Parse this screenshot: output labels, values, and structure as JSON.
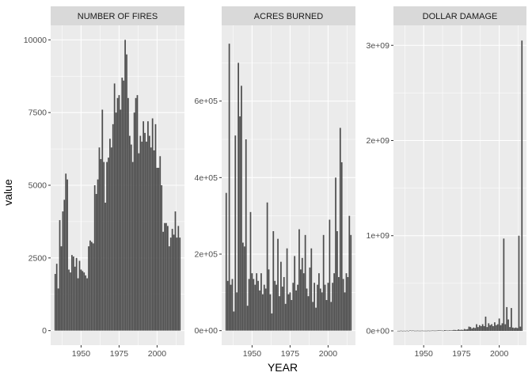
{
  "chart_data": {
    "type": "bar",
    "xlabel": "YEAR",
    "ylabel": "value",
    "x_ticks": [
      1950,
      1975,
      2000
    ],
    "xlim": [
      1930,
      2018
    ],
    "grid": true,
    "facets": [
      {
        "title": "NUMBER OF FIRES",
        "ylim": [
          -500,
          10500
        ],
        "y_ticks": [
          0,
          2500,
          5000,
          7500,
          10000
        ],
        "y_tick_labels": [
          "0",
          "2500",
          "5000",
          "7500",
          "10000"
        ],
        "x": [
          1933,
          1934,
          1935,
          1936,
          1937,
          1938,
          1939,
          1940,
          1941,
          1942,
          1943,
          1944,
          1945,
          1946,
          1947,
          1948,
          1949,
          1950,
          1951,
          1952,
          1953,
          1954,
          1955,
          1956,
          1957,
          1958,
          1959,
          1960,
          1961,
          1962,
          1963,
          1964,
          1965,
          1966,
          1967,
          1968,
          1969,
          1970,
          1971,
          1972,
          1973,
          1974,
          1975,
          1976,
          1977,
          1978,
          1979,
          1980,
          1981,
          1982,
          1983,
          1984,
          1985,
          1986,
          1987,
          1988,
          1989,
          1990,
          1991,
          1992,
          1993,
          1994,
          1995,
          1996,
          1997,
          1998,
          1999,
          2000,
          2001,
          2002,
          2003,
          2004,
          2005,
          2006,
          2007,
          2008,
          2009,
          2010,
          2011,
          2012,
          2013,
          2014,
          2015
        ],
        "values": [
          1950,
          2300,
          1450,
          3800,
          2900,
          4100,
          4500,
          5400,
          5200,
          2100,
          2000,
          2600,
          2550,
          2200,
          2500,
          1800,
          2400,
          2100,
          2050,
          2000,
          1900,
          1800,
          2900,
          3100,
          3050,
          3000,
          5000,
          4700,
          5200,
          6300,
          5900,
          7600,
          5800,
          4400,
          5800,
          5950,
          6600,
          6300,
          7100,
          8500,
          7500,
          8000,
          8100,
          7600,
          8700,
          8600,
          10000,
          9500,
          8000,
          6700,
          6400,
          5800,
          7500,
          8000,
          8100,
          6100,
          6700,
          6500,
          7200,
          6800,
          6500,
          7200,
          6700,
          6300,
          7300,
          6200,
          7100,
          5600,
          5600,
          6000,
          5000,
          3400,
          3700,
          3700,
          3600,
          2900,
          3200,
          3500,
          3300,
          4100,
          3200,
          3600,
          3200
        ]
      },
      {
        "title": "ACRES BURNED",
        "ylim": [
          -38000,
          798000
        ],
        "y_ticks": [
          0,
          200000,
          400000,
          600000
        ],
        "y_tick_labels": [
          "0e+00",
          "2e+05",
          "4e+05",
          "6e+05"
        ],
        "x": [
          1933,
          1934,
          1935,
          1936,
          1937,
          1938,
          1939,
          1940,
          1941,
          1942,
          1943,
          1944,
          1945,
          1946,
          1947,
          1948,
          1949,
          1950,
          1951,
          1952,
          1953,
          1954,
          1955,
          1956,
          1957,
          1958,
          1959,
          1960,
          1961,
          1962,
          1963,
          1964,
          1965,
          1966,
          1967,
          1968,
          1969,
          1970,
          1971,
          1972,
          1973,
          1974,
          1975,
          1976,
          1977,
          1978,
          1979,
          1980,
          1981,
          1982,
          1983,
          1984,
          1985,
          1986,
          1987,
          1988,
          1989,
          1990,
          1991,
          1992,
          1993,
          1994,
          1995,
          1996,
          1997,
          1998,
          1999,
          2000,
          2001,
          2002,
          2003,
          2004,
          2005,
          2006,
          2007,
          2008,
          2009,
          2010,
          2011,
          2012,
          2013,
          2014,
          2015
        ],
        "values": [
          360000,
          130000,
          750000,
          120000,
          135000,
          50000,
          510000,
          100000,
          700000,
          560000,
          640000,
          230000,
          220000,
          500000,
          65000,
          135000,
          310000,
          150000,
          135000,
          120000,
          150000,
          130000,
          105000,
          150000,
          95000,
          120000,
          110000,
          335000,
          160000,
          95000,
          45000,
          260000,
          130000,
          120000,
          240000,
          90000,
          180000,
          115000,
          140000,
          70000,
          215000,
          95000,
          100000,
          80000,
          125000,
          195000,
          105000,
          120000,
          265000,
          160000,
          190000,
          150000,
          250000,
          110000,
          90000,
          165000,
          215000,
          75000,
          125000,
          60000,
          120000,
          150000,
          110000,
          100000,
          250000,
          120000,
          80000,
          125000,
          290000,
          75000,
          125000,
          150000,
          400000,
          260000,
          140000,
          530000,
          440000,
          135000,
          100000,
          150000,
          140000,
          300000,
          250000
        ]
      },
      {
        "title": "DOLLAR DAMAGE",
        "ylim": [
          -150000000,
          3210000000
        ],
        "y_ticks": [
          0,
          1000000000,
          2000000000,
          3000000000
        ],
        "y_tick_labels": [
          "0e+00",
          "1e+09",
          "2e+09",
          "3e+09"
        ],
        "x": [
          1933,
          1934,
          1935,
          1936,
          1937,
          1938,
          1939,
          1940,
          1941,
          1942,
          1943,
          1944,
          1945,
          1946,
          1947,
          1948,
          1949,
          1950,
          1951,
          1952,
          1953,
          1954,
          1955,
          1956,
          1957,
          1958,
          1959,
          1960,
          1961,
          1962,
          1963,
          1964,
          1965,
          1966,
          1967,
          1968,
          1969,
          1970,
          1971,
          1972,
          1973,
          1974,
          1975,
          1976,
          1977,
          1978,
          1979,
          1980,
          1981,
          1982,
          1983,
          1984,
          1985,
          1986,
          1987,
          1988,
          1989,
          1990,
          1991,
          1992,
          1993,
          1994,
          1995,
          1996,
          1997,
          1998,
          1999,
          2000,
          2001,
          2002,
          2003,
          2004,
          2005,
          2006,
          2007,
          2008,
          2009,
          2010,
          2011,
          2012,
          2013,
          2014,
          2015
        ],
        "values": [
          1000000,
          1000000,
          3000000,
          1000000,
          2000000,
          1000000,
          3000000,
          1000000,
          5000000,
          3000000,
          4000000,
          2000000,
          2000000,
          3000000,
          2000000,
          2000000,
          3000000,
          2000000,
          2000000,
          2000000,
          3000000,
          2000000,
          3000000,
          4000000,
          3000000,
          3000000,
          4000000,
          6000000,
          5000000,
          4000000,
          3000000,
          8000000,
          5000000,
          4000000,
          6000000,
          5000000,
          6000000,
          10000000,
          9000000,
          7000000,
          15000000,
          10000000,
          12000000,
          10000000,
          20000000,
          15000000,
          18000000,
          45000000,
          40000000,
          25000000,
          35000000,
          30000000,
          70000000,
          40000000,
          60000000,
          50000000,
          70000000,
          50000000,
          150000000,
          40000000,
          80000000,
          60000000,
          70000000,
          50000000,
          90000000,
          60000000,
          70000000,
          130000000,
          60000000,
          80000000,
          970000000,
          70000000,
          250000000,
          120000000,
          40000000,
          240000000,
          35000000,
          30000000,
          35000000,
          30000000,
          1000000000,
          45000000,
          3050000000
        ]
      }
    ]
  }
}
